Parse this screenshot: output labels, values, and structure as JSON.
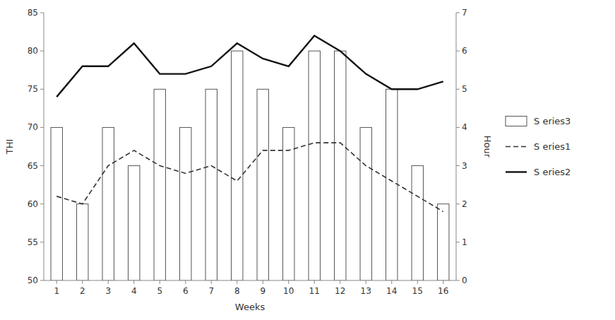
{
  "chart_data": {
    "type": "bar",
    "x_label": "Weeks",
    "y_label": "THI",
    "y2_label": "Hour",
    "x": [
      1,
      2,
      3,
      4,
      5,
      6,
      7,
      8,
      9,
      10,
      11,
      12,
      13,
      14,
      15,
      16
    ],
    "xlim": [
      0.5,
      16.5
    ],
    "xticks": [
      1,
      2,
      3,
      4,
      5,
      6,
      7,
      8,
      9,
      10,
      11,
      12,
      13,
      14,
      15,
      16
    ],
    "ylim": [
      50,
      85
    ],
    "yticks": [
      50,
      55,
      60,
      65,
      70,
      75,
      80,
      85
    ],
    "y2lim": [
      0,
      7
    ],
    "y2ticks": [
      0,
      1,
      2,
      3,
      4,
      5,
      6,
      7
    ],
    "grid": false,
    "legend": "right",
    "series": [
      {
        "name": "S eries3",
        "type": "bar",
        "color": "#ffffff",
        "values": [
          70,
          60,
          70,
          65,
          75,
          70,
          75,
          80,
          75,
          70,
          80,
          80,
          70,
          75,
          65,
          60
        ]
      },
      {
        "name": "S eries1",
        "type": "line",
        "color": "#333333",
        "line_style": "dashed",
        "values": [
          61,
          60,
          65,
          67,
          65,
          64,
          65,
          63,
          67,
          67,
          68,
          68,
          65,
          63,
          61,
          59
        ]
      },
      {
        "name": "S eries2",
        "type": "line",
        "color": "#111111",
        "line_style": "solid",
        "values": [
          74,
          78,
          78,
          81,
          77,
          77,
          78,
          81,
          79,
          78,
          82,
          80,
          77,
          75,
          75,
          76
        ]
      }
    ]
  }
}
